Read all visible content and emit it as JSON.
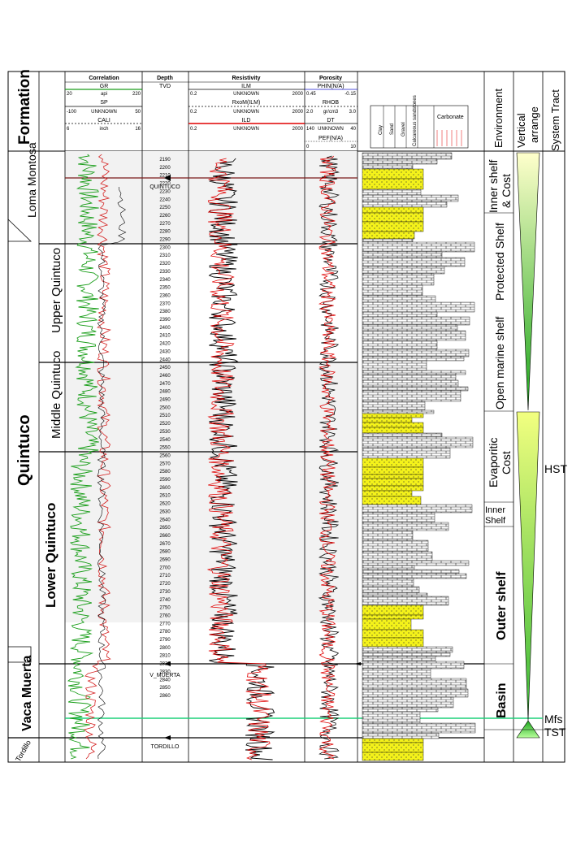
{
  "formation_header": "Formation",
  "tracks": {
    "correlation": {
      "title": "Correlation",
      "gr": {
        "name": "GR",
        "min": "20",
        "unit": "api",
        "max": "220"
      },
      "sp": {
        "name": "SP",
        "min": "-100",
        "unit": "UNKNOWN",
        "max": "50"
      },
      "cali": {
        "name": "CALI",
        "min": "6",
        "unit": "inch",
        "max": "16"
      }
    },
    "depth": {
      "title": "Depth",
      "sub": "TVD"
    },
    "resistivity": {
      "title": "Resistivity",
      "ilm": {
        "name": "ILM",
        "min": "0.2",
        "unit": "UNKNOWN",
        "max": "2000"
      },
      "rxo": {
        "name": "RxoM(ILM)",
        "min": "0.2",
        "unit": "UNKNOWN",
        "max": "2000"
      },
      "ild": {
        "name": "ILD",
        "min": "0.2",
        "unit": "UNKNOWN",
        "max": "2000"
      }
    },
    "porosity": {
      "title": "Porosity",
      "phin": {
        "name": "PHIN(N/A)",
        "min": "0.45",
        "max": "-0.15"
      },
      "rhob": {
        "name": "RHOB",
        "min": "2.0",
        "unit": "gr/cm3",
        "max": "3.0"
      },
      "dt": {
        "name": "DT",
        "min": "140",
        "unit": "UNKNOWN",
        "max": "40"
      },
      "pef": {
        "name": "PEF(N/A)",
        "min": "0",
        "max": "10"
      }
    },
    "lithology": {
      "columns": [
        "Clay",
        "Sand",
        "Gravel",
        "Calcareous sandstones"
      ],
      "carbonate": "Carbonate"
    }
  },
  "right_headers": {
    "environment": "Environment",
    "vertical": "Vertical arrange",
    "system_tract": "System Tract"
  },
  "formations": {
    "loma_montosa": "Loma Montosa",
    "quintuco": "Quintuco",
    "upper_quintuco": "Upper Quintuco",
    "middle_quintuco": "Middle Quintuco",
    "lower_quintuco": "Lower Quintuco",
    "vaca_muerta": "Vaca Muerta",
    "tordillo": "Tordillo"
  },
  "tops": {
    "quintuco": "QUINTUCO",
    "v_muerta": "V_MUERTA",
    "tordillo": "TORDILLO"
  },
  "depths": [
    2190,
    2200,
    2210,
    2220,
    2230,
    2240,
    2250,
    2260,
    2270,
    2280,
    2290,
    2300,
    2310,
    2320,
    2330,
    2340,
    2350,
    2360,
    2370,
    2380,
    2390,
    2400,
    2410,
    2420,
    2430,
    2440,
    2450,
    2460,
    2470,
    2480,
    2490,
    2500,
    2510,
    2520,
    2530,
    2540,
    2550,
    2560,
    2570,
    2580,
    2590,
    2600,
    2610,
    2620,
    2630,
    2640,
    2650,
    2660,
    2670,
    2680,
    2690,
    2700,
    2710,
    2720,
    2730,
    2740,
    2750,
    2760,
    2770,
    2780,
    2790,
    2800,
    2810,
    2820,
    2830,
    2840,
    2850,
    2860
  ],
  "environments": {
    "inner_shelf_cost": "Inner shelf & Cost",
    "protected_shelf": "Protected Shelf",
    "open_marine_shelf": "Open marine shelf",
    "evaporitic_cost": "Evaporitic Cost",
    "inner_shelf": "Inner Shelf",
    "outer_shelf": "Outer shelf",
    "basin": "Basin"
  },
  "system_tracts": {
    "hst": "HST",
    "mfs": "Mfs",
    "tst": "TST"
  },
  "colors": {
    "gr": "#1a9e1a",
    "sp": "#000000",
    "cali": "#000000",
    "ilm": "#e00000",
    "ild": "#000000",
    "rhob": "#e00000",
    "dt": "#000000",
    "sand": "#f2f21a",
    "mfs_line": "#1fd17a",
    "triangle": "#7ed321"
  }
}
